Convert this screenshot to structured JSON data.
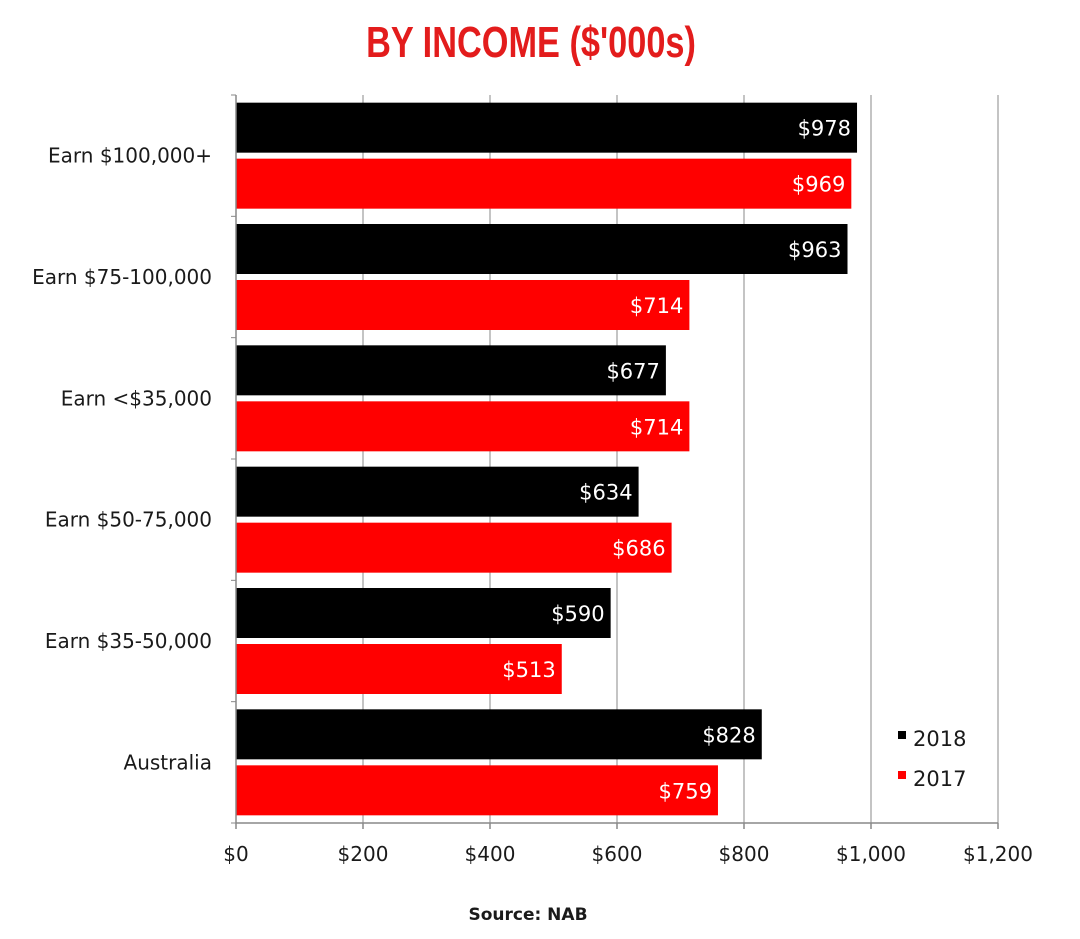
{
  "chart_data": {
    "type": "bar",
    "orientation": "horizontal",
    "title": "BY INCOME ($'000s)",
    "categories": [
      "Earn $100,000+",
      "Earn $75-100,000",
      "Earn <$35,000",
      "Earn $50-75,000",
      "Earn $35-50,000",
      "Australia"
    ],
    "series": [
      {
        "name": "2018",
        "color": "#000000",
        "values": [
          978,
          963,
          677,
          634,
          590,
          828
        ],
        "labels": [
          "$978",
          "$963",
          "$677",
          "$634",
          "$590",
          "$828"
        ]
      },
      {
        "name": "2017",
        "color": "#ff0000",
        "values": [
          969,
          714,
          714,
          686,
          513,
          759
        ],
        "labels": [
          "$969",
          "$714",
          "$714",
          "$686",
          "$513",
          "$759"
        ]
      }
    ],
    "xlim": [
      0,
      1200
    ],
    "xticks": [
      0,
      200,
      400,
      600,
      800,
      1000,
      1200
    ],
    "xtick_labels": [
      "$0",
      "$200",
      "$400",
      "$600",
      "$800",
      "$1,000",
      "$1,200"
    ],
    "grid": "vertical",
    "legend_position": "bottom-right",
    "source": "Source: NAB"
  }
}
